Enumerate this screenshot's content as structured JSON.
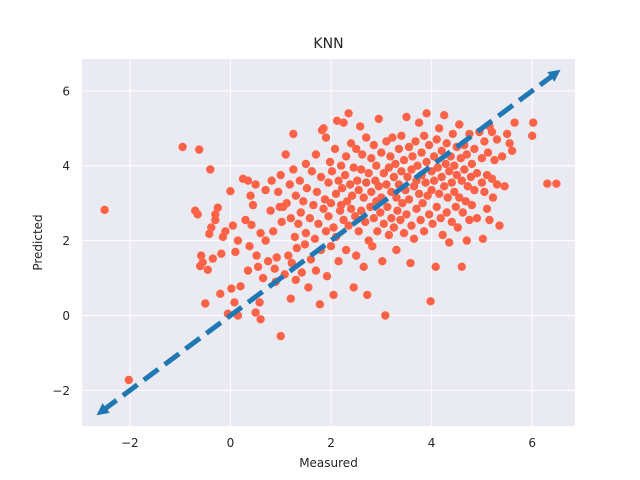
{
  "chart_data": {
    "type": "scatter",
    "title": "KNN",
    "xlabel": "Measured",
    "ylabel": "Predicted",
    "xlim": [
      -2.95,
      6.85
    ],
    "ylim": [
      -2.95,
      6.85
    ],
    "xticks": [
      -2,
      0,
      2,
      4,
      6
    ],
    "yticks": [
      -2,
      0,
      2,
      4,
      6
    ],
    "xtick_labels": [
      "−2",
      "0",
      "2",
      "4",
      "6"
    ],
    "ytick_labels": [
      "−2",
      "0",
      "2",
      "4",
      "6"
    ],
    "grid": true,
    "background": "#EAEAF2",
    "point_color": "#FF6347",
    "line_color": "#1F77B4",
    "identity_line": {
      "x": [
        -2.55,
        6.45
      ],
      "y": [
        -2.55,
        6.45
      ],
      "style": "dashed",
      "marker": "triangle"
    },
    "scatter_points": [
      [
        -2.5,
        2.82
      ],
      [
        -2.02,
        -1.72
      ],
      [
        -0.95,
        4.5
      ],
      [
        -0.7,
        2.8
      ],
      [
        -0.65,
        2.7
      ],
      [
        -0.62,
        4.43
      ],
      [
        -0.6,
        1.32
      ],
      [
        -0.58,
        1.6
      ],
      [
        -0.55,
        1.42
      ],
      [
        -0.5,
        0.32
      ],
      [
        -0.45,
        1.22
      ],
      [
        -0.42,
        2.18
      ],
      [
        -0.4,
        3.9
      ],
      [
        -0.38,
        2.35
      ],
      [
        -0.35,
        1.52
      ],
      [
        -0.3,
        2.55
      ],
      [
        -0.3,
        2.7
      ],
      [
        -0.25,
        2.88
      ],
      [
        -0.2,
        0.58
      ],
      [
        -0.18,
        1.65
      ],
      [
        -0.15,
        2.1
      ],
      [
        -0.1,
        2.25
      ],
      [
        -0.05,
        0.05
      ],
      [
        0.0,
        3.32
      ],
      [
        0.02,
        0.72
      ],
      [
        0.05,
        2.4
      ],
      [
        0.08,
        0.35
      ],
      [
        0.1,
        1.7
      ],
      [
        0.15,
        2.0
      ],
      [
        0.15,
        0.0
      ],
      [
        0.2,
        0.78
      ],
      [
        0.25,
        3.65
      ],
      [
        0.3,
        2.55
      ],
      [
        0.35,
        3.6
      ],
      [
        0.35,
        1.2
      ],
      [
        0.38,
        1.85
      ],
      [
        0.4,
        3.2
      ],
      [
        0.42,
        2.42
      ],
      [
        0.45,
        2.95
      ],
      [
        0.5,
        3.5
      ],
      [
        0.5,
        0.08
      ],
      [
        0.52,
        1.6
      ],
      [
        0.55,
        1.3
      ],
      [
        0.58,
        0.35
      ],
      [
        0.6,
        2.2
      ],
      [
        0.6,
        -0.1
      ],
      [
        0.65,
        1.0
      ],
      [
        0.7,
        3.35
      ],
      [
        0.7,
        2.0
      ],
      [
        0.75,
        1.45
      ],
      [
        0.8,
        2.8
      ],
      [
        0.82,
        3.6
      ],
      [
        0.85,
        2.25
      ],
      [
        0.88,
        1.25
      ],
      [
        0.9,
        0.9
      ],
      [
        0.92,
        1.55
      ],
      [
        0.95,
        3.3
      ],
      [
        0.98,
        2.9
      ],
      [
        1.0,
        -0.55
      ],
      [
        1.0,
        3.75
      ],
      [
        1.02,
        2.5
      ],
      [
        1.05,
        2.9
      ],
      [
        1.08,
        1.1
      ],
      [
        1.1,
        4.3
      ],
      [
        1.12,
        3.0
      ],
      [
        1.15,
        1.6
      ],
      [
        1.18,
        3.5
      ],
      [
        1.2,
        2.6
      ],
      [
        1.2,
        0.45
      ],
      [
        1.22,
        1.4
      ],
      [
        1.25,
        3.9
      ],
      [
        1.25,
        4.85
      ],
      [
        1.28,
        2.1
      ],
      [
        1.3,
        3.2
      ],
      [
        1.3,
        0.95
      ],
      [
        1.32,
        1.8
      ],
      [
        1.35,
        2.45
      ],
      [
        1.38,
        3.6
      ],
      [
        1.4,
        2.75
      ],
      [
        1.42,
        1.15
      ],
      [
        1.45,
        3.05
      ],
      [
        1.48,
        1.9
      ],
      [
        1.5,
        2.2
      ],
      [
        1.5,
        4.05
      ],
      [
        1.52,
        3.4
      ],
      [
        1.55,
        0.75
      ],
      [
        1.58,
        2.6
      ],
      [
        1.6,
        1.5
      ],
      [
        1.62,
        3.85
      ],
      [
        1.65,
        2.95
      ],
      [
        1.68,
        2.05
      ],
      [
        1.7,
        4.3
      ],
      [
        1.7,
        1.2
      ],
      [
        1.72,
        3.3
      ],
      [
        1.75,
        2.45
      ],
      [
        1.78,
        0.3
      ],
      [
        1.8,
        3.7
      ],
      [
        1.8,
        1.75
      ],
      [
        1.82,
        4.95
      ],
      [
        1.85,
        2.85
      ],
      [
        1.85,
        5.0
      ],
      [
        1.88,
        3.1
      ],
      [
        1.9,
        4.75
      ],
      [
        1.9,
        2.25
      ],
      [
        1.92,
        1.05
      ],
      [
        1.95,
        3.55
      ],
      [
        1.95,
        2.65
      ],
      [
        1.98,
        4.1
      ],
      [
        2.0,
        3.0
      ],
      [
        2.0,
        1.85
      ],
      [
        2.02,
        3.85
      ],
      [
        2.05,
        2.35
      ],
      [
        2.05,
        0.55
      ],
      [
        2.08,
        4.45
      ],
      [
        2.1,
        3.25
      ],
      [
        2.1,
        2.1
      ],
      [
        2.12,
        5.2
      ],
      [
        2.15,
        3.6
      ],
      [
        2.15,
        1.45
      ],
      [
        2.18,
        2.8
      ],
      [
        2.2,
        4.0
      ],
      [
        2.2,
        2.95
      ],
      [
        2.22,
        3.4
      ],
      [
        2.25,
        5.15
      ],
      [
        2.25,
        2.55
      ],
      [
        2.28,
        3.75
      ],
      [
        2.3,
        4.25
      ],
      [
        2.3,
        1.75
      ],
      [
        2.32,
        3.05
      ],
      [
        2.35,
        5.4
      ],
      [
        2.35,
        2.4
      ],
      [
        2.38,
        3.5
      ],
      [
        2.4,
        4.6
      ],
      [
        2.4,
        2.85
      ],
      [
        2.42,
        3.2
      ],
      [
        2.45,
        0.75
      ],
      [
        2.45,
        3.95
      ],
      [
        2.48,
        2.65
      ],
      [
        2.5,
        4.45
      ],
      [
        2.5,
        1.6
      ],
      [
        2.52,
        3.6
      ],
      [
        2.55,
        2.25
      ],
      [
        2.55,
        3.35
      ],
      [
        2.58,
        5.05
      ],
      [
        2.6,
        2.8
      ],
      [
        2.6,
        3.9
      ],
      [
        2.62,
        4.3
      ],
      [
        2.65,
        1.3
      ],
      [
        2.65,
        3.15
      ],
      [
        2.68,
        2.5
      ],
      [
        2.7,
        4.75
      ],
      [
        2.7,
        3.55
      ],
      [
        2.72,
        0.55
      ],
      [
        2.75,
        2.0
      ],
      [
        2.75,
        3.8
      ],
      [
        2.78,
        2.9
      ],
      [
        2.8,
        4.2
      ],
      [
        2.8,
        3.3
      ],
      [
        2.82,
        1.85
      ],
      [
        2.85,
        4.55
      ],
      [
        2.85,
        2.6
      ],
      [
        2.88,
        3.6
      ],
      [
        2.9,
        4.0
      ],
      [
        2.9,
        3.05
      ],
      [
        2.92,
        2.25
      ],
      [
        2.95,
        5.25
      ],
      [
        2.95,
        3.45
      ],
      [
        2.98,
        2.75
      ],
      [
        3.0,
        4.35
      ],
      [
        3.0,
        3.15
      ],
      [
        3.02,
        1.45
      ],
      [
        3.05,
        3.8
      ],
      [
        3.05,
        2.45
      ],
      [
        3.08,
        0.0
      ],
      [
        3.1,
        4.65
      ],
      [
        3.1,
        3.5
      ],
      [
        3.12,
        2.9
      ],
      [
        3.15,
        3.95
      ],
      [
        3.15,
        2.15
      ],
      [
        3.18,
        4.25
      ],
      [
        3.2,
        3.3
      ],
      [
        3.2,
        2.6
      ],
      [
        3.22,
        4.75
      ],
      [
        3.25,
        3.7
      ],
      [
        3.25,
        2.35
      ],
      [
        3.28,
        4.05
      ],
      [
        3.3,
        3.15
      ],
      [
        3.3,
        1.75
      ],
      [
        3.32,
        2.8
      ],
      [
        3.35,
        4.45
      ],
      [
        3.35,
        3.5
      ],
      [
        3.38,
        2.55
      ],
      [
        3.4,
        3.85
      ],
      [
        3.4,
        4.8
      ],
      [
        3.42,
        3.0
      ],
      [
        3.45,
        2.2
      ],
      [
        3.45,
        4.15
      ],
      [
        3.48,
        3.35
      ],
      [
        3.5,
        5.3
      ],
      [
        3.5,
        2.7
      ],
      [
        3.52,
        3.7
      ],
      [
        3.55,
        4.5
      ],
      [
        3.55,
        3.1
      ],
      [
        3.58,
        1.4
      ],
      [
        3.6,
        3.9
      ],
      [
        3.6,
        2.4
      ],
      [
        3.62,
        4.25
      ],
      [
        3.65,
        3.45
      ],
      [
        3.65,
        2.05
      ],
      [
        3.68,
        4.65
      ],
      [
        3.7,
        3.6
      ],
      [
        3.7,
        2.85
      ],
      [
        3.72,
        4.0
      ],
      [
        3.75,
        3.25
      ],
      [
        3.75,
        5.15
      ],
      [
        3.78,
        2.55
      ],
      [
        3.8,
        4.35
      ],
      [
        3.8,
        3.75
      ],
      [
        3.82,
        3.0
      ],
      [
        3.85,
        4.8
      ],
      [
        3.85,
        2.25
      ],
      [
        3.88,
        3.55
      ],
      [
        3.9,
        5.4
      ],
      [
        3.9,
        4.1
      ],
      [
        3.92,
        3.2
      ],
      [
        3.95,
        2.7
      ],
      [
        3.95,
        4.55
      ],
      [
        3.98,
        0.38
      ],
      [
        4.0,
        3.85
      ],
      [
        4.0,
        3.35
      ],
      [
        4.02,
        2.45
      ],
      [
        4.05,
        4.25
      ],
      [
        4.05,
        3.6
      ],
      [
        4.08,
        1.3
      ],
      [
        4.1,
        4.7
      ],
      [
        4.1,
        2.9
      ],
      [
        4.12,
        3.95
      ],
      [
        4.15,
        3.25
      ],
      [
        4.15,
        5.0
      ],
      [
        4.18,
        2.6
      ],
      [
        4.2,
        4.4
      ],
      [
        4.2,
        3.7
      ],
      [
        4.22,
        2.15
      ],
      [
        4.25,
        5.35
      ],
      [
        4.25,
        3.45
      ],
      [
        4.28,
        4.05
      ],
      [
        4.3,
        2.75
      ],
      [
        4.3,
        4.6
      ],
      [
        4.32,
        3.15
      ],
      [
        4.35,
        3.85
      ],
      [
        4.35,
        1.95
      ],
      [
        4.38,
        4.25
      ],
      [
        4.4,
        3.55
      ],
      [
        4.4,
        2.5
      ],
      [
        4.42,
        4.85
      ],
      [
        4.45,
        3.3
      ],
      [
        4.45,
        4.0
      ],
      [
        4.48,
        2.9
      ],
      [
        4.5,
        4.5
      ],
      [
        4.5,
        3.75
      ],
      [
        4.52,
        2.35
      ],
      [
        4.55,
        5.1
      ],
      [
        4.55,
        3.15
      ],
      [
        4.58,
        4.2
      ],
      [
        4.6,
        3.6
      ],
      [
        4.6,
        1.3
      ],
      [
        4.62,
        2.75
      ],
      [
        4.65,
        4.55
      ],
      [
        4.65,
        3.9
      ],
      [
        4.68,
        3.05
      ],
      [
        4.7,
        4.3
      ],
      [
        4.7,
        2.0
      ],
      [
        4.72,
        3.45
      ],
      [
        4.75,
        2.55
      ],
      [
        4.75,
        4.85
      ],
      [
        4.78,
        3.7
      ],
      [
        4.8,
        4.05
      ],
      [
        4.8,
        2.95
      ],
      [
        4.85,
        3.35
      ],
      [
        4.85,
        4.45
      ],
      [
        4.9,
        3.8
      ],
      [
        4.9,
        2.6
      ],
      [
        4.95,
        4.9
      ],
      [
        5.0,
        3.55
      ],
      [
        5.0,
        4.2
      ],
      [
        5.02,
        2.05
      ],
      [
        5.05,
        3.3
      ],
      [
        5.05,
        4.65
      ],
      [
        5.1,
        2.85
      ],
      [
        5.1,
        3.75
      ],
      [
        5.12,
        4.35
      ],
      [
        5.15,
        5.05
      ],
      [
        5.15,
        2.55
      ],
      [
        5.2,
        3.65
      ],
      [
        5.2,
        4.9
      ],
      [
        5.22,
        3.15
      ],
      [
        5.25,
        4.15
      ],
      [
        5.3,
        3.5
      ],
      [
        5.3,
        4.7
      ],
      [
        5.35,
        2.4
      ],
      [
        5.4,
        4.25
      ],
      [
        5.45,
        3.45
      ],
      [
        5.5,
        4.85
      ],
      [
        5.55,
        4.6
      ],
      [
        5.6,
        4.4
      ],
      [
        5.65,
        5.15
      ],
      [
        6.0,
        4.8
      ],
      [
        6.02,
        5.15
      ],
      [
        6.3,
        3.52
      ],
      [
        6.48,
        3.52
      ]
    ]
  }
}
